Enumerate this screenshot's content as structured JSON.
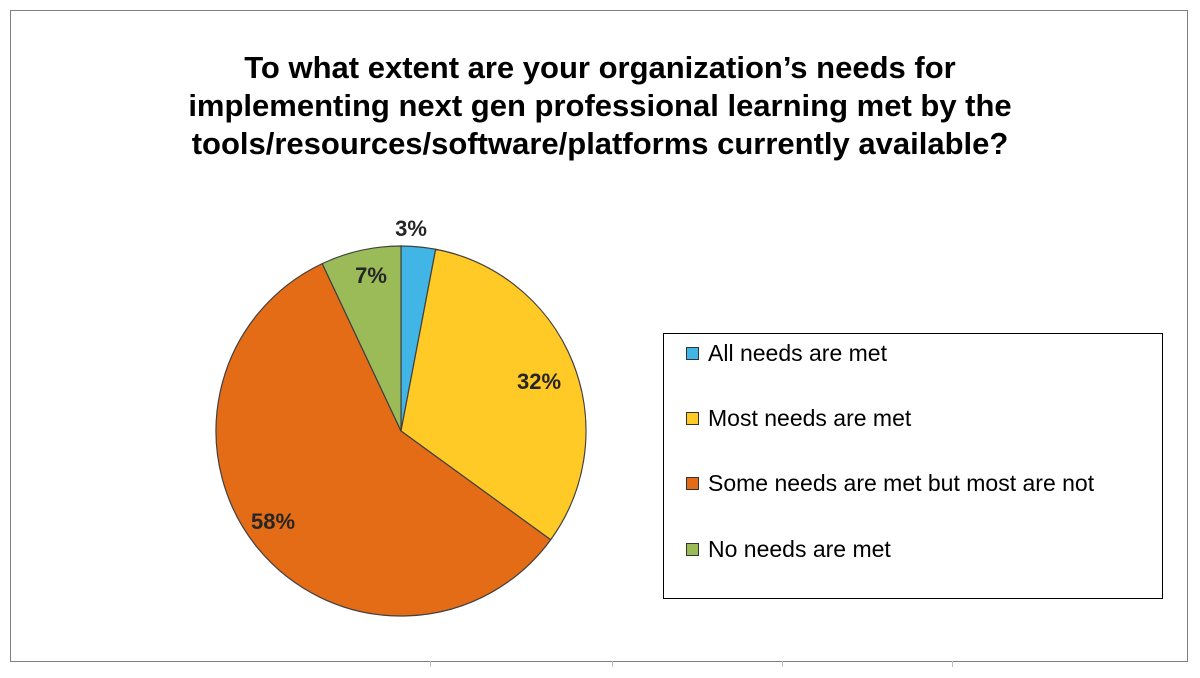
{
  "chart_data": {
    "type": "pie",
    "title": "To what extent are your organization’s needs for\nimplementing next gen professional learning met by the\ntools/resources/software/platforms currently available?",
    "slices": [
      {
        "name": "All needs are met",
        "value": 3,
        "label": "3%",
        "color": "#41b6e6"
      },
      {
        "name": "Most needs are met",
        "value": 32,
        "label": "32%",
        "color": "#ffc926"
      },
      {
        "name": "Some needs are met but most are not",
        "value": 58,
        "label": "58%",
        "color": "#e46c16"
      },
      {
        "name": "No needs are met",
        "value": 7,
        "label": "7%",
        "color": "#9bbb59"
      }
    ],
    "start_angle_deg": 0,
    "direction": "clockwise",
    "legend_position": "right"
  }
}
